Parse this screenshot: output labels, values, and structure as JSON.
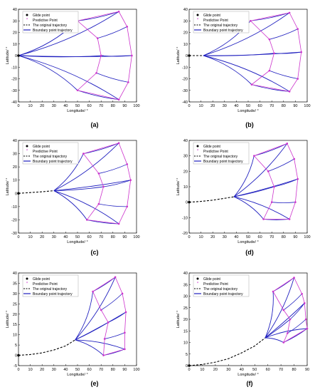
{
  "figure": {
    "panel_labels": [
      "(a)",
      "(b)",
      "(c)",
      "(d)",
      "(e)",
      "(f)"
    ],
    "legend_entries": [
      "Glide point",
      "Predictive Point",
      "The original trajectory",
      "Boundary point trajectory"
    ],
    "xlabel": "Longitude/ °",
    "ylabel": "Latitude/ °",
    "colors": {
      "boundary": "#1f1fbf",
      "predictive": "#cc33cc",
      "original": "#000000",
      "glide": "#000000"
    }
  },
  "chart_data": [
    {
      "label": "(a)",
      "type": "line",
      "xlim": [
        0,
        100
      ],
      "ylim": [
        -40,
        40
      ],
      "xticks": [
        0,
        10,
        20,
        30,
        40,
        50,
        60,
        70,
        80,
        90,
        100
      ],
      "yticks": [
        -40,
        -30,
        -20,
        -10,
        0,
        10,
        20,
        30,
        40
      ],
      "glide": [
        0,
        0
      ],
      "near": [
        [
          50,
          30
        ],
        [
          67,
          15
        ],
        [
          70,
          0
        ],
        [
          66,
          -15
        ],
        [
          50,
          -30
        ]
      ],
      "far": [
        [
          85,
          38
        ],
        [
          92,
          25
        ],
        [
          96,
          0
        ],
        [
          93,
          -23
        ],
        [
          85,
          -38
        ]
      ],
      "cross": [],
      "original_trajectory": [],
      "curves": [
        [
          [
            0,
            0
          ],
          [
            50,
            30
          ]
        ],
        [
          [
            0,
            0
          ],
          [
            85,
            38
          ]
        ],
        [
          [
            0,
            0
          ],
          [
            96,
            0
          ]
        ],
        [
          [
            0,
            0
          ],
          [
            85,
            -38
          ]
        ],
        [
          [
            0,
            0
          ],
          [
            50,
            -30
          ]
        ],
        [
          [
            0,
            0
          ],
          [
            72,
            0
          ]
        ]
      ]
    },
    {
      "label": "(b)",
      "type": "line",
      "xlim": [
        0,
        100
      ],
      "ylim": [
        -40,
        40
      ],
      "xticks": [
        0,
        10,
        20,
        30,
        40,
        50,
        60,
        70,
        80,
        90,
        100
      ],
      "yticks": [
        -40,
        -30,
        -20,
        -10,
        0,
        10,
        20,
        30,
        40
      ],
      "glide": [
        0,
        0
      ],
      "near": [
        [
          52,
          30
        ],
        [
          68,
          14
        ],
        [
          72,
          2
        ],
        [
          68,
          -13
        ],
        [
          53,
          -25
        ]
      ],
      "far": [
        [
          85,
          37
        ],
        [
          92,
          23
        ],
        [
          95,
          3
        ],
        [
          92,
          -20
        ],
        [
          85,
          -31
        ]
      ],
      "cross": [],
      "original_trajectory": [
        [
          0,
          0
        ],
        [
          12,
          0
        ]
      ],
      "curves": [
        [
          [
            12,
            0
          ],
          [
            52,
            30
          ]
        ],
        [
          [
            12,
            0
          ],
          [
            85,
            37
          ]
        ],
        [
          [
            12,
            0
          ],
          [
            95,
            3
          ]
        ],
        [
          [
            12,
            0
          ],
          [
            85,
            -31
          ]
        ],
        [
          [
            12,
            0
          ],
          [
            53,
            -25
          ]
        ],
        [
          [
            12,
            0
          ],
          [
            72,
            2
          ]
        ]
      ]
    },
    {
      "label": "(c)",
      "type": "line",
      "xlim": [
        0,
        100
      ],
      "ylim": [
        -30,
        40
      ],
      "xticks": [
        0,
        10,
        20,
        30,
        40,
        50,
        60,
        70,
        80,
        90,
        100
      ],
      "yticks": [
        -30,
        -20,
        -10,
        0,
        10,
        20,
        30,
        40
      ],
      "glide": [
        0,
        0
      ],
      "near": [
        [
          55,
          30
        ],
        [
          68,
          15
        ],
        [
          72,
          5
        ],
        [
          68,
          -8
        ],
        [
          58,
          -20
        ]
      ],
      "far": [
        [
          85,
          38
        ],
        [
          92,
          22
        ],
        [
          95,
          10
        ],
        [
          92,
          -10
        ],
        [
          85,
          -23
        ]
      ],
      "cross": [],
      "original_trajectory": [
        [
          0,
          0
        ],
        [
          10,
          0.6
        ],
        [
          20,
          1.2
        ],
        [
          30,
          2
        ]
      ],
      "curves": [
        [
          [
            30,
            2
          ],
          [
            55,
            30
          ]
        ],
        [
          [
            30,
            2
          ],
          [
            85,
            38
          ]
        ],
        [
          [
            30,
            2
          ],
          [
            95,
            10
          ]
        ],
        [
          [
            30,
            2
          ],
          [
            85,
            -23
          ]
        ],
        [
          [
            30,
            2
          ],
          [
            58,
            -20
          ]
        ],
        [
          [
            30,
            2
          ],
          [
            72,
            5
          ]
        ]
      ]
    },
    {
      "label": "(d)",
      "type": "line",
      "xlim": [
        0,
        100
      ],
      "ylim": [
        -20,
        40
      ],
      "xticks": [
        0,
        10,
        20,
        30,
        40,
        50,
        60,
        70,
        80,
        90,
        100
      ],
      "yticks": [
        -20,
        -10,
        0,
        10,
        20,
        30,
        40
      ],
      "glide": [
        0,
        0
      ],
      "near": [
        [
          55,
          30
        ],
        [
          67,
          20
        ],
        [
          72,
          10
        ],
        [
          70,
          0
        ],
        [
          63,
          -11
        ]
      ],
      "far": [
        [
          83,
          38
        ],
        [
          89,
          28
        ],
        [
          92,
          15
        ],
        [
          90,
          0
        ],
        [
          85,
          -11
        ]
      ],
      "cross": [],
      "original_trajectory": [
        [
          0,
          0
        ],
        [
          10,
          0.5
        ],
        [
          20,
          1.3
        ],
        [
          30,
          2.5
        ],
        [
          38,
          3.5
        ]
      ],
      "curves": [
        [
          [
            38,
            3.5
          ],
          [
            55,
            30
          ]
        ],
        [
          [
            38,
            3.5
          ],
          [
            83,
            38
          ]
        ],
        [
          [
            38,
            3.5
          ],
          [
            92,
            15
          ]
        ],
        [
          [
            38,
            3.5
          ],
          [
            85,
            -11
          ]
        ],
        [
          [
            38,
            3.5
          ],
          [
            63,
            -11
          ]
        ],
        [
          [
            38,
            3.5
          ],
          [
            72,
            10
          ]
        ]
      ]
    },
    {
      "label": "(e)",
      "type": "line",
      "xlim": [
        0,
        100
      ],
      "ylim": [
        -5,
        40
      ],
      "xticks": [
        0,
        10,
        20,
        30,
        40,
        50,
        60,
        70,
        80,
        90,
        100
      ],
      "yticks": [
        -5,
        0,
        5,
        10,
        15,
        20,
        25,
        30,
        35,
        40
      ],
      "glide": [
        0,
        0
      ],
      "near": [
        [
          63,
          31
        ],
        [
          70,
          22
        ],
        [
          76,
          16
        ],
        [
          73,
          8
        ],
        [
          72,
          0
        ]
      ],
      "far": [
        [
          82,
          38
        ],
        [
          88,
          30
        ],
        [
          91,
          21
        ],
        [
          90,
          11
        ],
        [
          90,
          3
        ]
      ],
      "cross": [],
      "original_trajectory": [
        [
          0,
          0
        ],
        [
          10,
          0.4
        ],
        [
          20,
          1.2
        ],
        [
          30,
          2.6
        ],
        [
          40,
          4.6
        ],
        [
          48,
          7.5
        ]
      ],
      "curves": [
        [
          [
            48,
            7.5
          ],
          [
            63,
            31
          ]
        ],
        [
          [
            48,
            7.5
          ],
          [
            82,
            38
          ]
        ],
        [
          [
            48,
            7.5
          ],
          [
            91,
            21
          ]
        ],
        [
          [
            48,
            7.5
          ],
          [
            90,
            3
          ]
        ],
        [
          [
            48,
            7.5
          ],
          [
            72,
            0
          ]
        ],
        [
          [
            48,
            7.5
          ],
          [
            76,
            16
          ]
        ]
      ]
    },
    {
      "label": "(f)",
      "type": "line",
      "xlim": [
        0,
        90
      ],
      "ylim": [
        0,
        40
      ],
      "xticks": [
        0,
        10,
        20,
        30,
        40,
        50,
        60,
        70,
        80,
        90
      ],
      "yticks": [
        0,
        5,
        10,
        15,
        20,
        25,
        30,
        35,
        40
      ],
      "glide": [
        0,
        0
      ],
      "near": [
        [
          64,
          32
        ],
        [
          72,
          24
        ],
        [
          77,
          20
        ],
        [
          75,
          14
        ],
        [
          72,
          10
        ]
      ],
      "far": [
        [
          80,
          38
        ],
        [
          86,
          31
        ],
        [
          88,
          27
        ],
        [
          89,
          20
        ],
        [
          90,
          16
        ]
      ],
      "cross": [],
      "original_trajectory": [
        [
          0,
          0
        ],
        [
          10,
          0.5
        ],
        [
          20,
          1.5
        ],
        [
          30,
          3
        ],
        [
          40,
          5.5
        ],
        [
          50,
          8.5
        ],
        [
          58,
          12
        ]
      ],
      "curves": [
        [
          [
            58,
            12
          ],
          [
            64,
            32
          ]
        ],
        [
          [
            58,
            12
          ],
          [
            80,
            38
          ]
        ],
        [
          [
            58,
            12
          ],
          [
            88,
            27
          ]
        ],
        [
          [
            58,
            12
          ],
          [
            90,
            16
          ]
        ],
        [
          [
            58,
            12
          ],
          [
            72,
            10
          ]
        ],
        [
          [
            58,
            12
          ],
          [
            77,
            20
          ]
        ]
      ]
    }
  ]
}
